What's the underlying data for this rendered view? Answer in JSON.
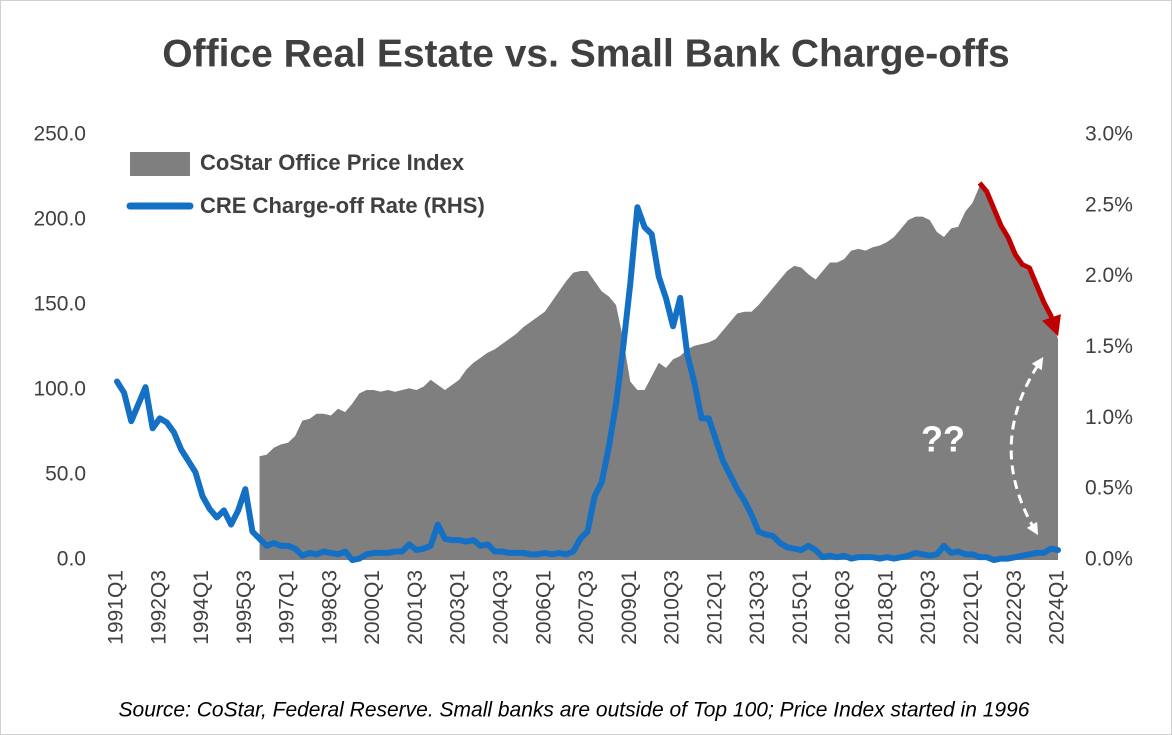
{
  "chart_data": {
    "type": "area-line",
    "title": "Office Real Estate vs. Small Bank Charge-offs",
    "source": "Source: CoStar, Federal Reserve. Small banks are outside of Top 100; Price Index started in 1996",
    "annotation": "??",
    "categories": [
      "1991Q1",
      null,
      null,
      null,
      null,
      null,
      "1992Q3",
      null,
      null,
      null,
      null,
      null,
      "1994Q1",
      null,
      null,
      null,
      null,
      null,
      "1995Q3",
      null,
      null,
      null,
      null,
      null,
      "1997Q1",
      null,
      null,
      null,
      null,
      null,
      "1998Q3",
      null,
      null,
      null,
      null,
      null,
      "2000Q1",
      null,
      null,
      null,
      null,
      null,
      "2001Q3",
      null,
      null,
      null,
      null,
      null,
      "2003Q1",
      null,
      null,
      null,
      null,
      null,
      "2004Q3",
      null,
      null,
      null,
      null,
      null,
      "2006Q1",
      null,
      null,
      null,
      null,
      null,
      "2007Q3",
      null,
      null,
      null,
      null,
      null,
      "2009Q1",
      null,
      null,
      null,
      null,
      null,
      "2010Q3",
      null,
      null,
      null,
      null,
      null,
      "2012Q1",
      null,
      null,
      null,
      null,
      null,
      "2013Q3",
      null,
      null,
      null,
      null,
      null,
      "2015Q1",
      null,
      null,
      null,
      null,
      null,
      "2016Q3",
      null,
      null,
      null,
      null,
      null,
      "2018Q1",
      null,
      null,
      null,
      null,
      null,
      "2019Q3",
      null,
      null,
      null,
      null,
      null,
      "2021Q1",
      null,
      null,
      null,
      null,
      null,
      "2022Q3",
      null,
      null,
      null,
      null,
      null,
      "2024Q1"
    ],
    "series": [
      {
        "name": "CoStar Office Price Index",
        "color": "#7f7f7f",
        "axis": "y",
        "values": [
          null,
          null,
          null,
          null,
          null,
          null,
          null,
          null,
          null,
          null,
          null,
          null,
          null,
          null,
          null,
          null,
          null,
          null,
          null,
          null,
          61,
          62,
          66,
          68,
          69,
          73,
          82,
          83,
          86,
          86,
          85,
          89,
          87,
          92,
          98,
          100,
          100,
          99,
          100,
          99,
          100,
          101,
          100,
          102,
          106,
          103,
          100,
          103,
          106,
          112,
          116,
          119,
          122,
          124,
          127,
          130,
          133,
          137,
          140,
          143,
          146,
          152,
          158,
          164,
          169,
          170,
          170,
          164,
          158,
          155,
          150,
          130,
          105,
          100,
          100,
          108,
          116,
          113,
          118,
          120,
          124,
          126,
          127,
          128,
          130,
          135,
          140,
          145,
          146,
          146,
          150,
          155,
          160,
          165,
          170,
          173,
          172,
          168,
          165,
          170,
          175,
          175,
          177,
          182,
          183,
          182,
          184,
          185,
          187,
          190,
          195,
          200,
          202,
          202,
          200,
          193,
          190,
          195,
          196,
          205,
          210,
          220,
          215,
          205,
          195,
          188,
          178,
          172,
          170,
          160,
          150,
          142,
          130
        ]
      },
      {
        "name": "CRE Charge-off Rate (RHS)",
        "color": "#1470c4",
        "axis": "y2",
        "values": [
          1.26,
          1.18,
          0.98,
          1.1,
          1.22,
          0.93,
          1.0,
          0.97,
          0.9,
          0.78,
          0.7,
          0.62,
          0.45,
          0.36,
          0.3,
          0.35,
          0.25,
          0.35,
          0.5,
          0.2,
          0.15,
          0.1,
          0.12,
          0.1,
          0.1,
          0.08,
          0.03,
          0.05,
          0.04,
          0.06,
          0.05,
          0.04,
          0.06,
          0.0,
          0.01,
          0.04,
          0.05,
          0.05,
          0.05,
          0.06,
          0.06,
          0.11,
          0.07,
          0.08,
          0.1,
          0.25,
          0.15,
          0.14,
          0.14,
          0.13,
          0.14,
          0.1,
          0.11,
          0.06,
          0.06,
          0.05,
          0.05,
          0.05,
          0.04,
          0.04,
          0.05,
          0.04,
          0.05,
          0.04,
          0.06,
          0.15,
          0.2,
          0.45,
          0.55,
          0.8,
          1.1,
          1.5,
          1.95,
          2.49,
          2.35,
          2.3,
          2.0,
          1.85,
          1.65,
          1.85,
          1.45,
          1.25,
          1.0,
          1.0,
          0.85,
          0.7,
          0.6,
          0.5,
          0.42,
          0.32,
          0.2,
          0.18,
          0.17,
          0.12,
          0.09,
          0.08,
          0.07,
          0.1,
          0.07,
          0.02,
          0.03,
          0.02,
          0.03,
          0.01,
          0.02,
          0.02,
          0.02,
          0.01,
          0.02,
          0.01,
          0.02,
          0.03,
          0.05,
          0.04,
          0.03,
          0.04,
          0.1,
          0.05,
          0.06,
          0.04,
          0.04,
          0.02,
          0.02,
          0.0,
          0.01,
          0.01,
          0.02,
          0.03,
          0.04,
          0.05,
          0.05,
          0.08,
          0.07
        ]
      }
    ],
    "highlight_color": "#c00000",
    "ylim": [
      0,
      250
    ],
    "yticks": [
      {
        "value": 0,
        "label": "0.0"
      },
      {
        "value": 50,
        "label": "50.0"
      },
      {
        "value": 100,
        "label": "100.0"
      },
      {
        "value": 150,
        "label": "150.0"
      },
      {
        "value": 200,
        "label": "200.0"
      },
      {
        "value": 250,
        "label": "250.0"
      }
    ],
    "y2lim": [
      0,
      3
    ],
    "y2ticks": [
      {
        "value": 0,
        "label": "0.0%"
      },
      {
        "value": 0.5,
        "label": "0.5%"
      },
      {
        "value": 1,
        "label": "1.0%"
      },
      {
        "value": 1.5,
        "label": "1.5%"
      },
      {
        "value": 2,
        "label": "2.0%"
      },
      {
        "value": 2.5,
        "label": "2.5%"
      },
      {
        "value": 3,
        "label": "3.0%"
      }
    ]
  }
}
